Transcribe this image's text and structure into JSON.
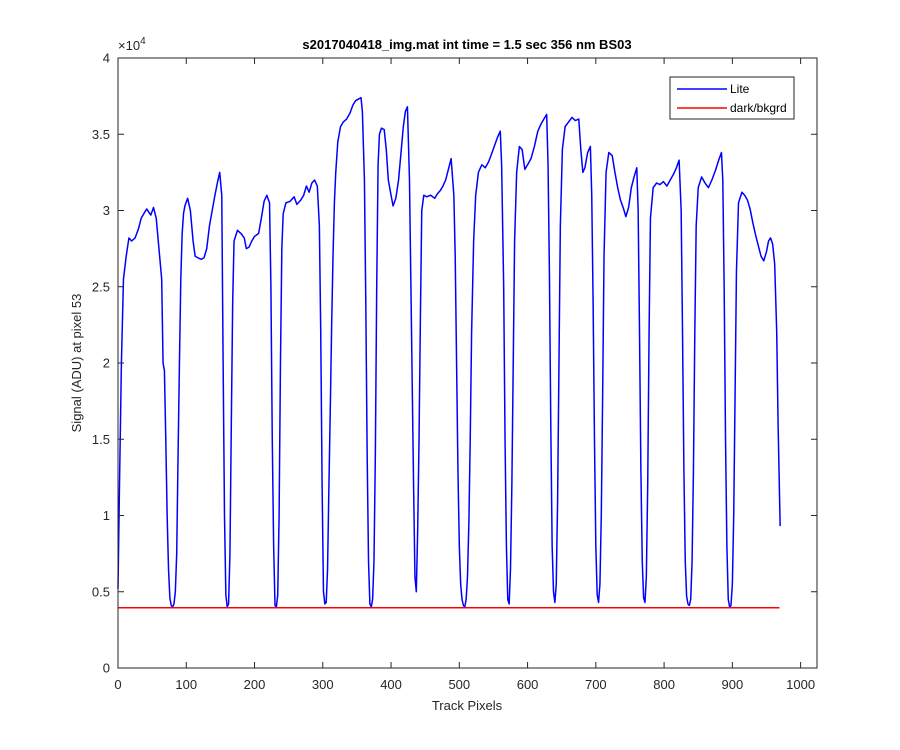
{
  "chart_data": {
    "type": "line",
    "title": "s2017040418_img.mat int time = 1.5 sec  356 nm BS03",
    "xlabel": "Track Pixels",
    "ylabel": "Signal (ADU) at pixel 53",
    "xlim": [
      0,
      1024
    ],
    "ylim": [
      0,
      40000
    ],
    "x_ticks": [
      0,
      100,
      200,
      300,
      400,
      500,
      600,
      700,
      800,
      900,
      1000
    ],
    "y_ticks": [
      0,
      5000,
      10000,
      15000,
      20000,
      25000,
      30000,
      35000,
      40000
    ],
    "y_tick_labels": [
      "0",
      "0.5",
      "1",
      "1.5",
      "2",
      "2.5",
      "3",
      "3.5",
      "4"
    ],
    "y_exponent_base": "×10",
    "y_exponent_power": "4",
    "grid": false,
    "legend_position": "top-right",
    "series": [
      {
        "name": "Lite",
        "color": "#0000ff",
        "points": [
          [
            0,
            5200
          ],
          [
            2,
            11500
          ],
          [
            5,
            20000
          ],
          [
            8,
            25500
          ],
          [
            12,
            27000
          ],
          [
            16,
            28200
          ],
          [
            20,
            28000
          ],
          [
            25,
            28200
          ],
          [
            30,
            28800
          ],
          [
            34,
            29500
          ],
          [
            38,
            29800
          ],
          [
            42,
            30100
          ],
          [
            48,
            29700
          ],
          [
            52,
            30200
          ],
          [
            56,
            29500
          ],
          [
            60,
            27500
          ],
          [
            64,
            25500
          ],
          [
            66,
            20000
          ],
          [
            68,
            19500
          ],
          [
            70,
            15000
          ],
          [
            72,
            10000
          ],
          [
            74,
            6500
          ],
          [
            76,
            4600
          ],
          [
            78,
            4100
          ],
          [
            80,
            4000
          ],
          [
            82,
            4200
          ],
          [
            84,
            5000
          ],
          [
            86,
            7500
          ],
          [
            88,
            14000
          ],
          [
            90,
            20000
          ],
          [
            92,
            25500
          ],
          [
            94,
            28500
          ],
          [
            96,
            29800
          ],
          [
            98,
            30300
          ],
          [
            102,
            30800
          ],
          [
            106,
            30000
          ],
          [
            110,
            28000
          ],
          [
            113,
            27000
          ],
          [
            117,
            26900
          ],
          [
            122,
            26800
          ],
          [
            126,
            26900
          ],
          [
            130,
            27500
          ],
          [
            134,
            29000
          ],
          [
            138,
            30000
          ],
          [
            142,
            31000
          ],
          [
            146,
            31900
          ],
          [
            149,
            32500
          ],
          [
            152,
            31000
          ],
          [
            154,
            20000
          ],
          [
            156,
            10000
          ],
          [
            158,
            4800
          ],
          [
            160,
            4000
          ],
          [
            162,
            4200
          ],
          [
            164,
            7500
          ],
          [
            166,
            16000
          ],
          [
            168,
            24000
          ],
          [
            170,
            28000
          ],
          [
            175,
            28700
          ],
          [
            180,
            28500
          ],
          [
            185,
            28200
          ],
          [
            188,
            27500
          ],
          [
            192,
            27600
          ],
          [
            196,
            28000
          ],
          [
            200,
            28300
          ],
          [
            206,
            28500
          ],
          [
            210,
            29500
          ],
          [
            214,
            30600
          ],
          [
            218,
            31000
          ],
          [
            222,
            30500
          ],
          [
            224,
            25000
          ],
          [
            226,
            15000
          ],
          [
            228,
            8000
          ],
          [
            230,
            4100
          ],
          [
            232,
            4000
          ],
          [
            234,
            4800
          ],
          [
            236,
            10000
          ],
          [
            238,
            20000
          ],
          [
            240,
            27500
          ],
          [
            242,
            29800
          ],
          [
            246,
            30500
          ],
          [
            252,
            30600
          ],
          [
            258,
            30900
          ],
          [
            262,
            30400
          ],
          [
            268,
            30700
          ],
          [
            272,
            31000
          ],
          [
            276,
            31600
          ],
          [
            280,
            31200
          ],
          [
            284,
            31800
          ],
          [
            288,
            32000
          ],
          [
            292,
            31600
          ],
          [
            295,
            29000
          ],
          [
            297,
            22000
          ],
          [
            299,
            12000
          ],
          [
            301,
            5000
          ],
          [
            303,
            4200
          ],
          [
            305,
            4300
          ],
          [
            307,
            6500
          ],
          [
            309,
            12000
          ],
          [
            311,
            17000
          ],
          [
            313,
            22500
          ],
          [
            315,
            27000
          ],
          [
            317,
            30500
          ],
          [
            319,
            32500
          ],
          [
            322,
            34500
          ],
          [
            326,
            35500
          ],
          [
            330,
            35800
          ],
          [
            335,
            36000
          ],
          [
            340,
            36400
          ],
          [
            344,
            36900
          ],
          [
            348,
            37200
          ],
          [
            352,
            37300
          ],
          [
            356,
            37400
          ],
          [
            358,
            36500
          ],
          [
            361,
            32000
          ],
          [
            363,
            24000
          ],
          [
            365,
            14000
          ],
          [
            367,
            7000
          ],
          [
            369,
            4200
          ],
          [
            371,
            4000
          ],
          [
            373,
            4500
          ],
          [
            375,
            7000
          ],
          [
            377,
            14000
          ],
          [
            379,
            25000
          ],
          [
            381,
            33000
          ],
          [
            383,
            35000
          ],
          [
            386,
            35400
          ],
          [
            390,
            35300
          ],
          [
            393,
            34000
          ],
          [
            396,
            32000
          ],
          [
            400,
            31000
          ],
          [
            403,
            30300
          ],
          [
            407,
            30800
          ],
          [
            411,
            32000
          ],
          [
            415,
            34000
          ],
          [
            418,
            35500
          ],
          [
            421,
            36500
          ],
          [
            424,
            36800
          ],
          [
            427,
            32000
          ],
          [
            430,
            22000
          ],
          [
            433,
            12000
          ],
          [
            435,
            6000
          ],
          [
            437,
            5000
          ],
          [
            439,
            9000
          ],
          [
            441,
            15000
          ],
          [
            443,
            23000
          ],
          [
            445,
            30000
          ],
          [
            448,
            31000
          ],
          [
            452,
            30900
          ],
          [
            458,
            31000
          ],
          [
            464,
            30800
          ],
          [
            468,
            31100
          ],
          [
            472,
            31300
          ],
          [
            476,
            31600
          ],
          [
            480,
            32000
          ],
          [
            484,
            32700
          ],
          [
            488,
            33400
          ],
          [
            492,
            31000
          ],
          [
            494,
            27000
          ],
          [
            496,
            20000
          ],
          [
            498,
            13000
          ],
          [
            500,
            8000
          ],
          [
            502,
            5500
          ],
          [
            504,
            4500
          ],
          [
            506,
            4100
          ],
          [
            508,
            4000
          ],
          [
            510,
            4500
          ],
          [
            512,
            6000
          ],
          [
            514,
            9500
          ],
          [
            516,
            15000
          ],
          [
            518,
            22000
          ],
          [
            521,
            28000
          ],
          [
            524,
            31000
          ],
          [
            528,
            32500
          ],
          [
            533,
            33000
          ],
          [
            538,
            32800
          ],
          [
            543,
            33200
          ],
          [
            548,
            33800
          ],
          [
            552,
            34300
          ],
          [
            556,
            34800
          ],
          [
            560,
            35200
          ],
          [
            562,
            33000
          ],
          [
            565,
            25000
          ],
          [
            567,
            15000
          ],
          [
            569,
            8000
          ],
          [
            571,
            4500
          ],
          [
            573,
            4200
          ],
          [
            575,
            6500
          ],
          [
            577,
            12000
          ],
          [
            579,
            20000
          ],
          [
            581,
            28000
          ],
          [
            584,
            32500
          ],
          [
            588,
            34200
          ],
          [
            592,
            34000
          ],
          [
            596,
            32700
          ],
          [
            600,
            33000
          ],
          [
            605,
            33400
          ],
          [
            610,
            34200
          ],
          [
            615,
            35200
          ],
          [
            620,
            35700
          ],
          [
            624,
            36000
          ],
          [
            628,
            36300
          ],
          [
            630,
            33000
          ],
          [
            632,
            26000
          ],
          [
            634,
            16000
          ],
          [
            636,
            8000
          ],
          [
            638,
            5000
          ],
          [
            640,
            4300
          ],
          [
            642,
            5500
          ],
          [
            644,
            11000
          ],
          [
            646,
            20000
          ],
          [
            648,
            29000
          ],
          [
            651,
            34000
          ],
          [
            655,
            35500
          ],
          [
            660,
            35800
          ],
          [
            665,
            36100
          ],
          [
            670,
            35900
          ],
          [
            675,
            36000
          ],
          [
            678,
            34000
          ],
          [
            681,
            32500
          ],
          [
            684,
            32800
          ],
          [
            688,
            33800
          ],
          [
            692,
            34200
          ],
          [
            694,
            31000
          ],
          [
            696,
            24000
          ],
          [
            698,
            15000
          ],
          [
            700,
            8000
          ],
          [
            702,
            4800
          ],
          [
            704,
            4300
          ],
          [
            706,
            5500
          ],
          [
            708,
            10000
          ],
          [
            710,
            18000
          ],
          [
            712,
            27000
          ],
          [
            715,
            32500
          ],
          [
            719,
            33800
          ],
          [
            724,
            33600
          ],
          [
            728,
            32500
          ],
          [
            732,
            31500
          ],
          [
            736,
            30700
          ],
          [
            740,
            30200
          ],
          [
            744,
            29600
          ],
          [
            748,
            30200
          ],
          [
            752,
            31500
          ],
          [
            756,
            32200
          ],
          [
            760,
            32800
          ],
          [
            762,
            30000
          ],
          [
            764,
            22000
          ],
          [
            766,
            13000
          ],
          [
            768,
            7000
          ],
          [
            770,
            4600
          ],
          [
            772,
            4300
          ],
          [
            774,
            6000
          ],
          [
            776,
            12000
          ],
          [
            778,
            22000
          ],
          [
            780,
            29500
          ],
          [
            784,
            31500
          ],
          [
            789,
            31800
          ],
          [
            794,
            31700
          ],
          [
            799,
            31900
          ],
          [
            804,
            31600
          ],
          [
            809,
            32000
          ],
          [
            814,
            32400
          ],
          [
            818,
            32800
          ],
          [
            822,
            33300
          ],
          [
            825,
            30000
          ],
          [
            827,
            22000
          ],
          [
            829,
            13000
          ],
          [
            831,
            7000
          ],
          [
            833,
            4700
          ],
          [
            835,
            4200
          ],
          [
            837,
            4100
          ],
          [
            839,
            4500
          ],
          [
            841,
            7000
          ],
          [
            843,
            13000
          ],
          [
            845,
            22000
          ],
          [
            847,
            29000
          ],
          [
            850,
            31500
          ],
          [
            855,
            32200
          ],
          [
            860,
            31800
          ],
          [
            865,
            31500
          ],
          [
            870,
            32000
          ],
          [
            875,
            32600
          ],
          [
            880,
            33300
          ],
          [
            884,
            33800
          ],
          [
            886,
            32000
          ],
          [
            888,
            25000
          ],
          [
            890,
            15000
          ],
          [
            892,
            8000
          ],
          [
            894,
            4500
          ],
          [
            896,
            4000
          ],
          [
            898,
            4100
          ],
          [
            900,
            5500
          ],
          [
            902,
            10000
          ],
          [
            904,
            18000
          ],
          [
            906,
            26000
          ],
          [
            909,
            30500
          ],
          [
            914,
            31200
          ],
          [
            918,
            31000
          ],
          [
            922,
            30700
          ],
          [
            926,
            30100
          ],
          [
            930,
            29200
          ],
          [
            934,
            28400
          ],
          [
            938,
            27700
          ],
          [
            942,
            27000
          ],
          [
            946,
            26700
          ],
          [
            950,
            27300
          ],
          [
            953,
            28000
          ],
          [
            956,
            28200
          ],
          [
            959,
            27800
          ],
          [
            962,
            26500
          ],
          [
            965,
            22000
          ],
          [
            967,
            16000
          ],
          [
            969,
            11500
          ],
          [
            970,
            9300
          ]
        ]
      },
      {
        "name": "dark/bkgrd",
        "color": "#ff0000",
        "points": [
          [
            0,
            3950
          ],
          [
            969,
            3950
          ]
        ]
      }
    ]
  }
}
